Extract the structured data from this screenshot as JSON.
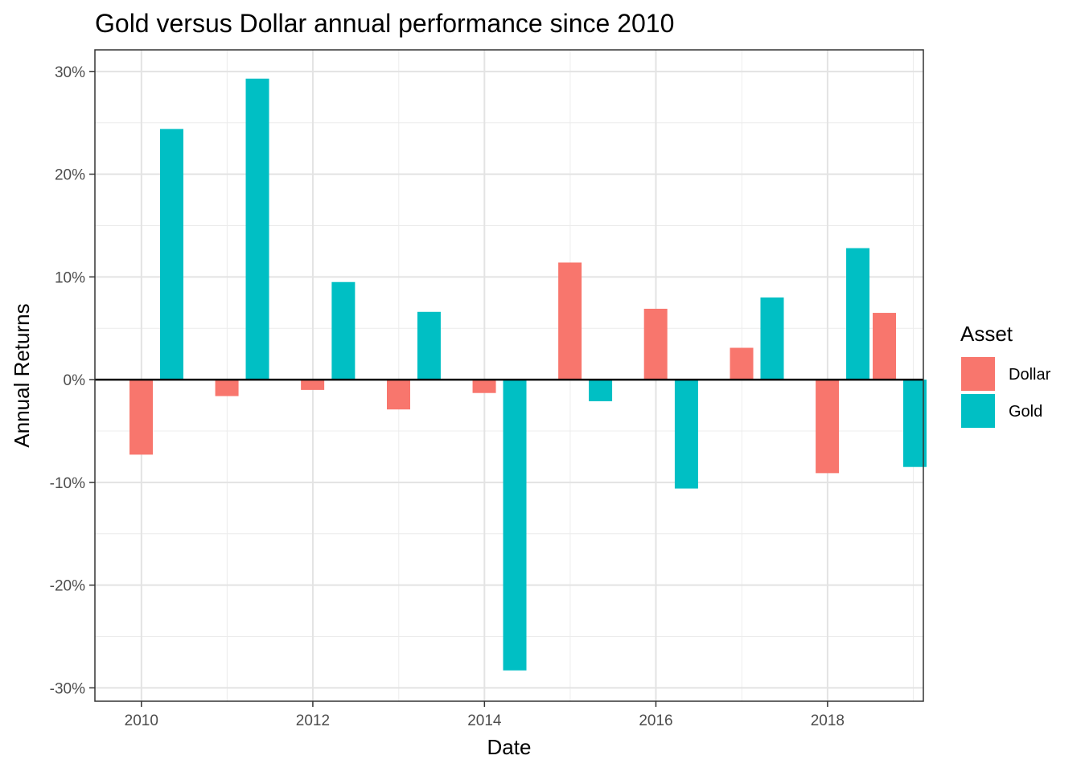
{
  "chart_data": {
    "type": "bar",
    "title": "Gold versus Dollar annual performance since 2010",
    "xlabel": "Date",
    "ylabel": "Annual Returns",
    "x_ticks": [
      "2010",
      "2012",
      "2014",
      "2016",
      "2018"
    ],
    "y_ticks": [
      {
        "value": 30,
        "label": "30%"
      },
      {
        "value": 20,
        "label": "20%"
      },
      {
        "value": 10,
        "label": "10%"
      },
      {
        "value": 0,
        "label": "0%"
      },
      {
        "value": -10,
        "label": "-10%"
      },
      {
        "value": -20,
        "label": "-20%"
      },
      {
        "value": -30,
        "label": "-30%"
      }
    ],
    "ylim": [
      -31.3,
      32.1
    ],
    "xlim": [
      "2009-06-17",
      "2019-02-13"
    ],
    "grid": true,
    "zero_line": true,
    "legend": {
      "title": "Asset",
      "position": "right"
    },
    "series": [
      {
        "name": "Dollar",
        "color": "#F8766D",
        "points": [
          {
            "date": "2009-12-31",
            "value": -7.3
          },
          {
            "date": "2010-12-31",
            "value": -1.6
          },
          {
            "date": "2011-12-31",
            "value": -1.0
          },
          {
            "date": "2012-12-31",
            "value": -2.9
          },
          {
            "date": "2013-12-31",
            "value": -1.3
          },
          {
            "date": "2014-12-31",
            "value": 11.4
          },
          {
            "date": "2015-12-31",
            "value": 6.9
          },
          {
            "date": "2016-12-31",
            "value": 3.1
          },
          {
            "date": "2017-12-31",
            "value": -9.1
          },
          {
            "date": "2018-08-31",
            "value": 6.5
          }
        ]
      },
      {
        "name": "Gold",
        "color": "#00BFC4",
        "points": [
          {
            "date": "2010-05-10",
            "value": 24.4
          },
          {
            "date": "2011-05-10",
            "value": 29.3
          },
          {
            "date": "2012-05-10",
            "value": 9.5
          },
          {
            "date": "2013-05-10",
            "value": 6.6
          },
          {
            "date": "2014-05-10",
            "value": -28.3
          },
          {
            "date": "2015-05-10",
            "value": -2.1
          },
          {
            "date": "2016-05-10",
            "value": -10.6
          },
          {
            "date": "2017-05-10",
            "value": 8.0
          },
          {
            "date": "2018-05-10",
            "value": 12.8
          },
          {
            "date": "2019-01-08",
            "value": -8.5
          }
        ]
      }
    ]
  }
}
